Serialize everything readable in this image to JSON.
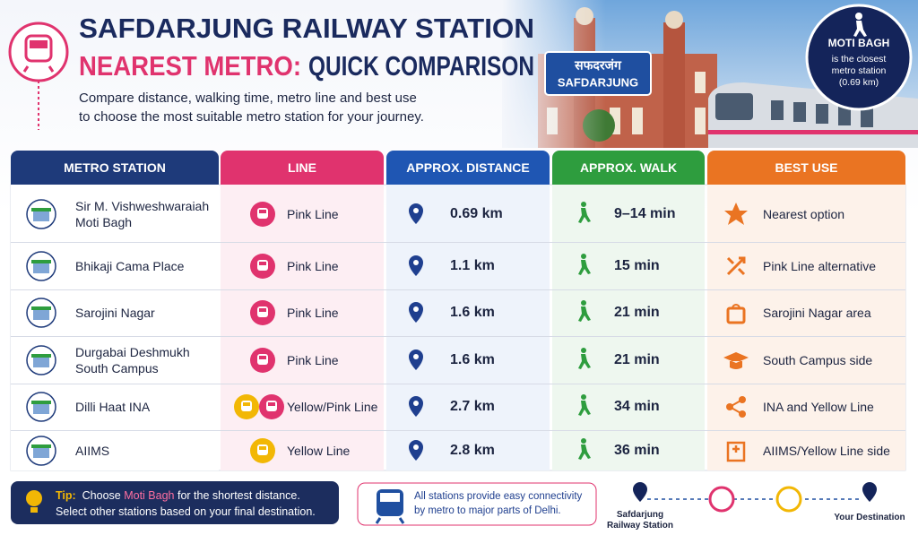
{
  "header": {
    "title_line1": "SAFDARJUNG RAILWAY STATION",
    "title_highlight": "NEAREST METRO:",
    "title_rest": "QUICK COMPARISON",
    "subtitle_line1": "Compare distance, walking time, metro line and best use",
    "subtitle_line2": "to choose the most suitable metro station for your journey."
  },
  "sign": {
    "hindi": "सफदरजंग",
    "english": "SAFDARJUNG"
  },
  "badge": {
    "title": "MOTI BAGH",
    "text": "is the closest metro station (0.69 km)"
  },
  "table": {
    "columns": [
      "METRO STATION",
      "LINE",
      "APPROX. DISTANCE",
      "APPROX. WALK",
      "BEST USE"
    ],
    "rows": [
      {
        "station": "Sir M. Vishweshwaraiah Moti Bagh",
        "line": "Pink Line",
        "line_colors": [
          "#e0336e"
        ],
        "distance": "0.69 km",
        "walk": "9–14 min",
        "best_use": "Nearest option"
      },
      {
        "station": "Bhikaji Cama Place",
        "line": "Pink Line",
        "line_colors": [
          "#e0336e"
        ],
        "distance": "1.1 km",
        "walk": "15 min",
        "best_use": "Pink Line alternative"
      },
      {
        "station": "Sarojini Nagar",
        "line": "Pink Line",
        "line_colors": [
          "#e0336e"
        ],
        "distance": "1.6 km",
        "walk": "21 min",
        "best_use": "Sarojini Nagar area"
      },
      {
        "station": "Durgabai Deshmukh South Campus",
        "line": "Pink Line",
        "line_colors": [
          "#e0336e"
        ],
        "distance": "1.6 km",
        "walk": "21 min",
        "best_use": "South Campus side"
      },
      {
        "station": "Dilli Haat INA",
        "line": "Yellow/Pink Line",
        "line_colors": [
          "#f2b705",
          "#e0336e"
        ],
        "distance": "2.7 km",
        "walk": "34 min",
        "best_use": "INA and Yellow Line"
      },
      {
        "station": "AIIMS",
        "line": "Yellow Line",
        "line_colors": [
          "#f2b705"
        ],
        "distance": "2.8 km",
        "walk": "36 min",
        "best_use": "AIIMS/Yellow Line side"
      }
    ]
  },
  "footer": {
    "tip_label": "Tip:",
    "tip_before": "Choose",
    "tip_highlight": "Moti Bagh",
    "tip_after": "for the shortest distance.",
    "tip_line2": "Select other stations based on your final destination.",
    "connectivity": "All stations provide easy connectivity by metro to major parts of Delhi.",
    "route_start": "Safdarjung Railway Station",
    "route_end": "Your Destination"
  }
}
